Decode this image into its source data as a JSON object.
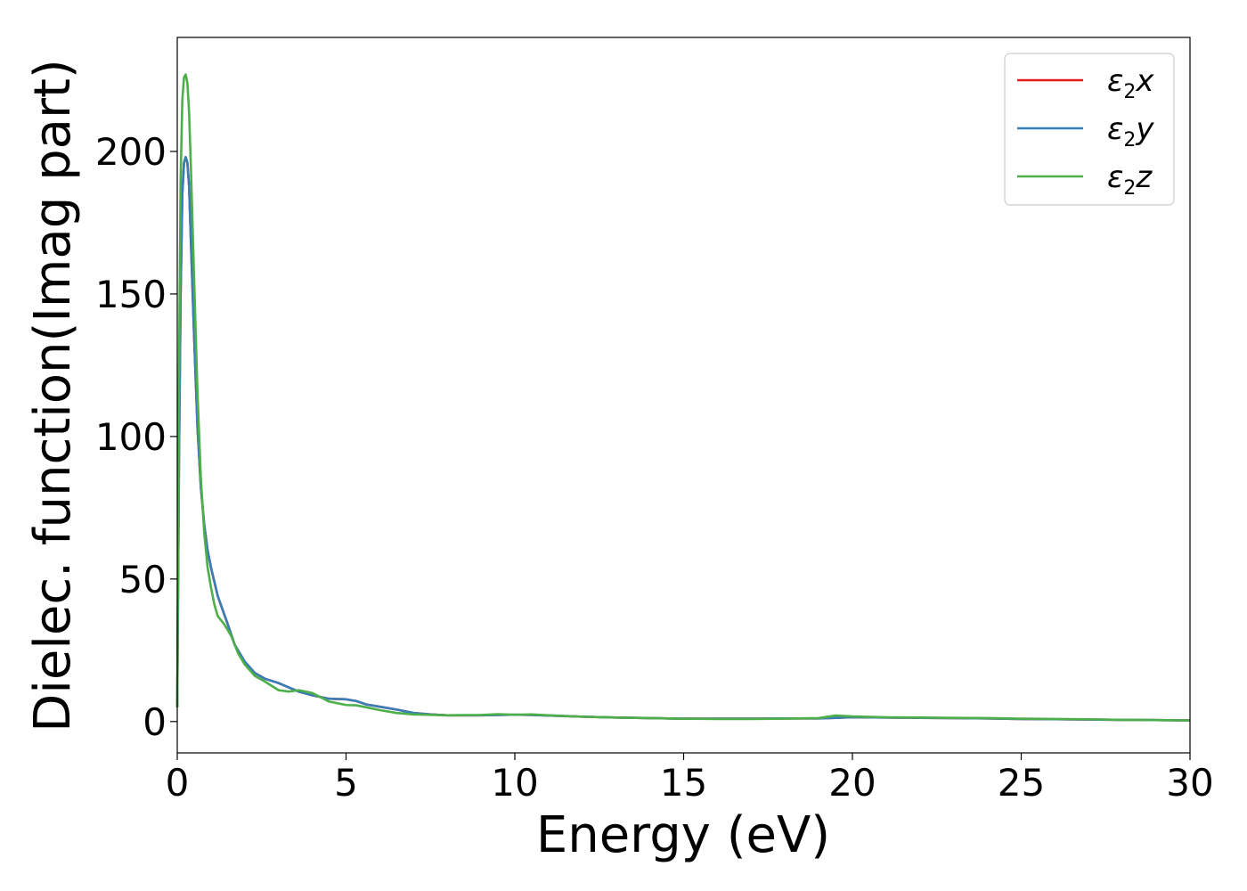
{
  "chart_data": {
    "type": "line",
    "title": "",
    "xlabel": "Energy (eV)",
    "ylabel": "Dielec. function(Imag part)",
    "xlim": [
      0,
      30
    ],
    "ylim": [
      -11,
      240
    ],
    "x_ticks": [
      "0",
      "5",
      "10",
      "15",
      "20",
      "25",
      "30"
    ],
    "y_ticks": [
      "0",
      "50",
      "100",
      "150",
      "200"
    ],
    "grid": false,
    "legend_position": "top-right",
    "series": [
      {
        "name": "ε2x",
        "legend_base": "ε",
        "legend_sub": "2",
        "legend_var": "x",
        "color": "#e41a1c",
        "x": [
          0,
          0.05,
          0.1,
          0.15,
          0.2,
          0.25,
          0.3,
          0.35,
          0.4,
          0.5,
          0.6,
          0.7,
          0.8,
          0.9,
          1.0,
          1.2,
          1.5,
          1.7,
          2.0,
          2.3,
          2.6,
          3.0,
          3.3,
          3.6,
          4.0,
          4.5,
          5.0,
          5.3,
          5.6,
          6.0,
          6.5,
          7.0,
          7.5,
          8.0,
          9.0,
          9.5,
          10.0,
          10.5,
          11.0,
          12.0,
          13.0,
          14.0,
          15.0,
          16.0,
          17.0,
          18.0,
          19.0,
          19.5,
          20.0,
          21.0,
          22.0,
          23.0,
          24.0,
          25.0,
          26.0,
          27.0,
          28.0,
          29.0,
          30.0
        ],
        "y": [
          5,
          90,
          150,
          185,
          196,
          198,
          196,
          188,
          170,
          135,
          103,
          82,
          69,
          60,
          54,
          44,
          34,
          27,
          21,
          17,
          15,
          13.5,
          12,
          10.5,
          9.2,
          8,
          7.8,
          7.2,
          6,
          5.2,
          4.2,
          3,
          2.5,
          2.2,
          2.2,
          2.3,
          2.4,
          2.3,
          2.1,
          1.7,
          1.4,
          1.2,
          1.0,
          1.0,
          1.0,
          1.1,
          1.1,
          1.3,
          1.5,
          1.4,
          1.3,
          1.2,
          1.1,
          0.9,
          0.8,
          0.7,
          0.6,
          0.5,
          0.4
        ]
      },
      {
        "name": "ε2y",
        "legend_base": "ε",
        "legend_sub": "2",
        "legend_var": "y",
        "color": "#377eb8",
        "x": [
          0,
          0.05,
          0.1,
          0.15,
          0.2,
          0.25,
          0.3,
          0.35,
          0.4,
          0.5,
          0.6,
          0.7,
          0.8,
          0.9,
          1.0,
          1.2,
          1.5,
          1.7,
          2.0,
          2.3,
          2.6,
          3.0,
          3.3,
          3.6,
          4.0,
          4.5,
          5.0,
          5.3,
          5.6,
          6.0,
          6.5,
          7.0,
          7.5,
          8.0,
          9.0,
          9.5,
          10.0,
          10.5,
          11.0,
          12.0,
          13.0,
          14.0,
          15.0,
          16.0,
          17.0,
          18.0,
          19.0,
          19.5,
          20.0,
          21.0,
          22.0,
          23.0,
          24.0,
          25.0,
          26.0,
          27.0,
          28.0,
          29.0,
          30.0
        ],
        "y": [
          5,
          90,
          150,
          185,
          196,
          198,
          196,
          188,
          170,
          135,
          103,
          82,
          69,
          60,
          54,
          44,
          34,
          27,
          21,
          17,
          15,
          13.5,
          12,
          10.5,
          9.2,
          8,
          7.8,
          7.2,
          6,
          5.2,
          4.2,
          3,
          2.5,
          2.2,
          2.2,
          2.3,
          2.4,
          2.3,
          2.1,
          1.7,
          1.4,
          1.2,
          1.0,
          1.0,
          1.0,
          1.1,
          1.1,
          1.3,
          1.5,
          1.4,
          1.3,
          1.2,
          1.1,
          0.9,
          0.8,
          0.7,
          0.6,
          0.5,
          0.4
        ]
      },
      {
        "name": "ε2z",
        "legend_base": "ε",
        "legend_sub": "2",
        "legend_var": "z",
        "color": "#4daf4a",
        "x": [
          0,
          0.05,
          0.1,
          0.15,
          0.2,
          0.25,
          0.3,
          0.35,
          0.4,
          0.5,
          0.6,
          0.7,
          0.8,
          0.9,
          1.0,
          1.1,
          1.2,
          1.4,
          1.6,
          1.8,
          2.0,
          2.3,
          2.6,
          3.0,
          3.3,
          3.6,
          4.0,
          4.5,
          5.0,
          5.3,
          5.6,
          6.0,
          6.5,
          7.0,
          8.0,
          9.0,
          9.5,
          10.0,
          10.5,
          11.0,
          12.0,
          13.0,
          14.0,
          15.0,
          16.0,
          17.0,
          18.0,
          19.0,
          19.5,
          20.0,
          21.0,
          22.0,
          23.0,
          24.0,
          25.0,
          26.0,
          27.0,
          28.0,
          29.0,
          30.0
        ],
        "y": [
          5,
          120,
          190,
          218,
          226,
          227,
          224,
          214,
          196,
          155,
          115,
          85,
          66,
          54,
          47,
          41,
          37,
          34,
          30,
          24,
          20,
          16,
          14,
          11,
          10.5,
          11,
          10,
          7,
          5.8,
          5.7,
          5,
          4,
          3,
          2.5,
          2.2,
          2.3,
          2.6,
          2.4,
          2.5,
          2.2,
          1.7,
          1.4,
          1.2,
          1.0,
          0.9,
          0.9,
          1.0,
          1.2,
          2.1,
          1.8,
          1.5,
          1.4,
          1.3,
          1.2,
          1.0,
          0.9,
          0.8,
          0.6,
          0.5,
          0.4
        ]
      }
    ]
  }
}
